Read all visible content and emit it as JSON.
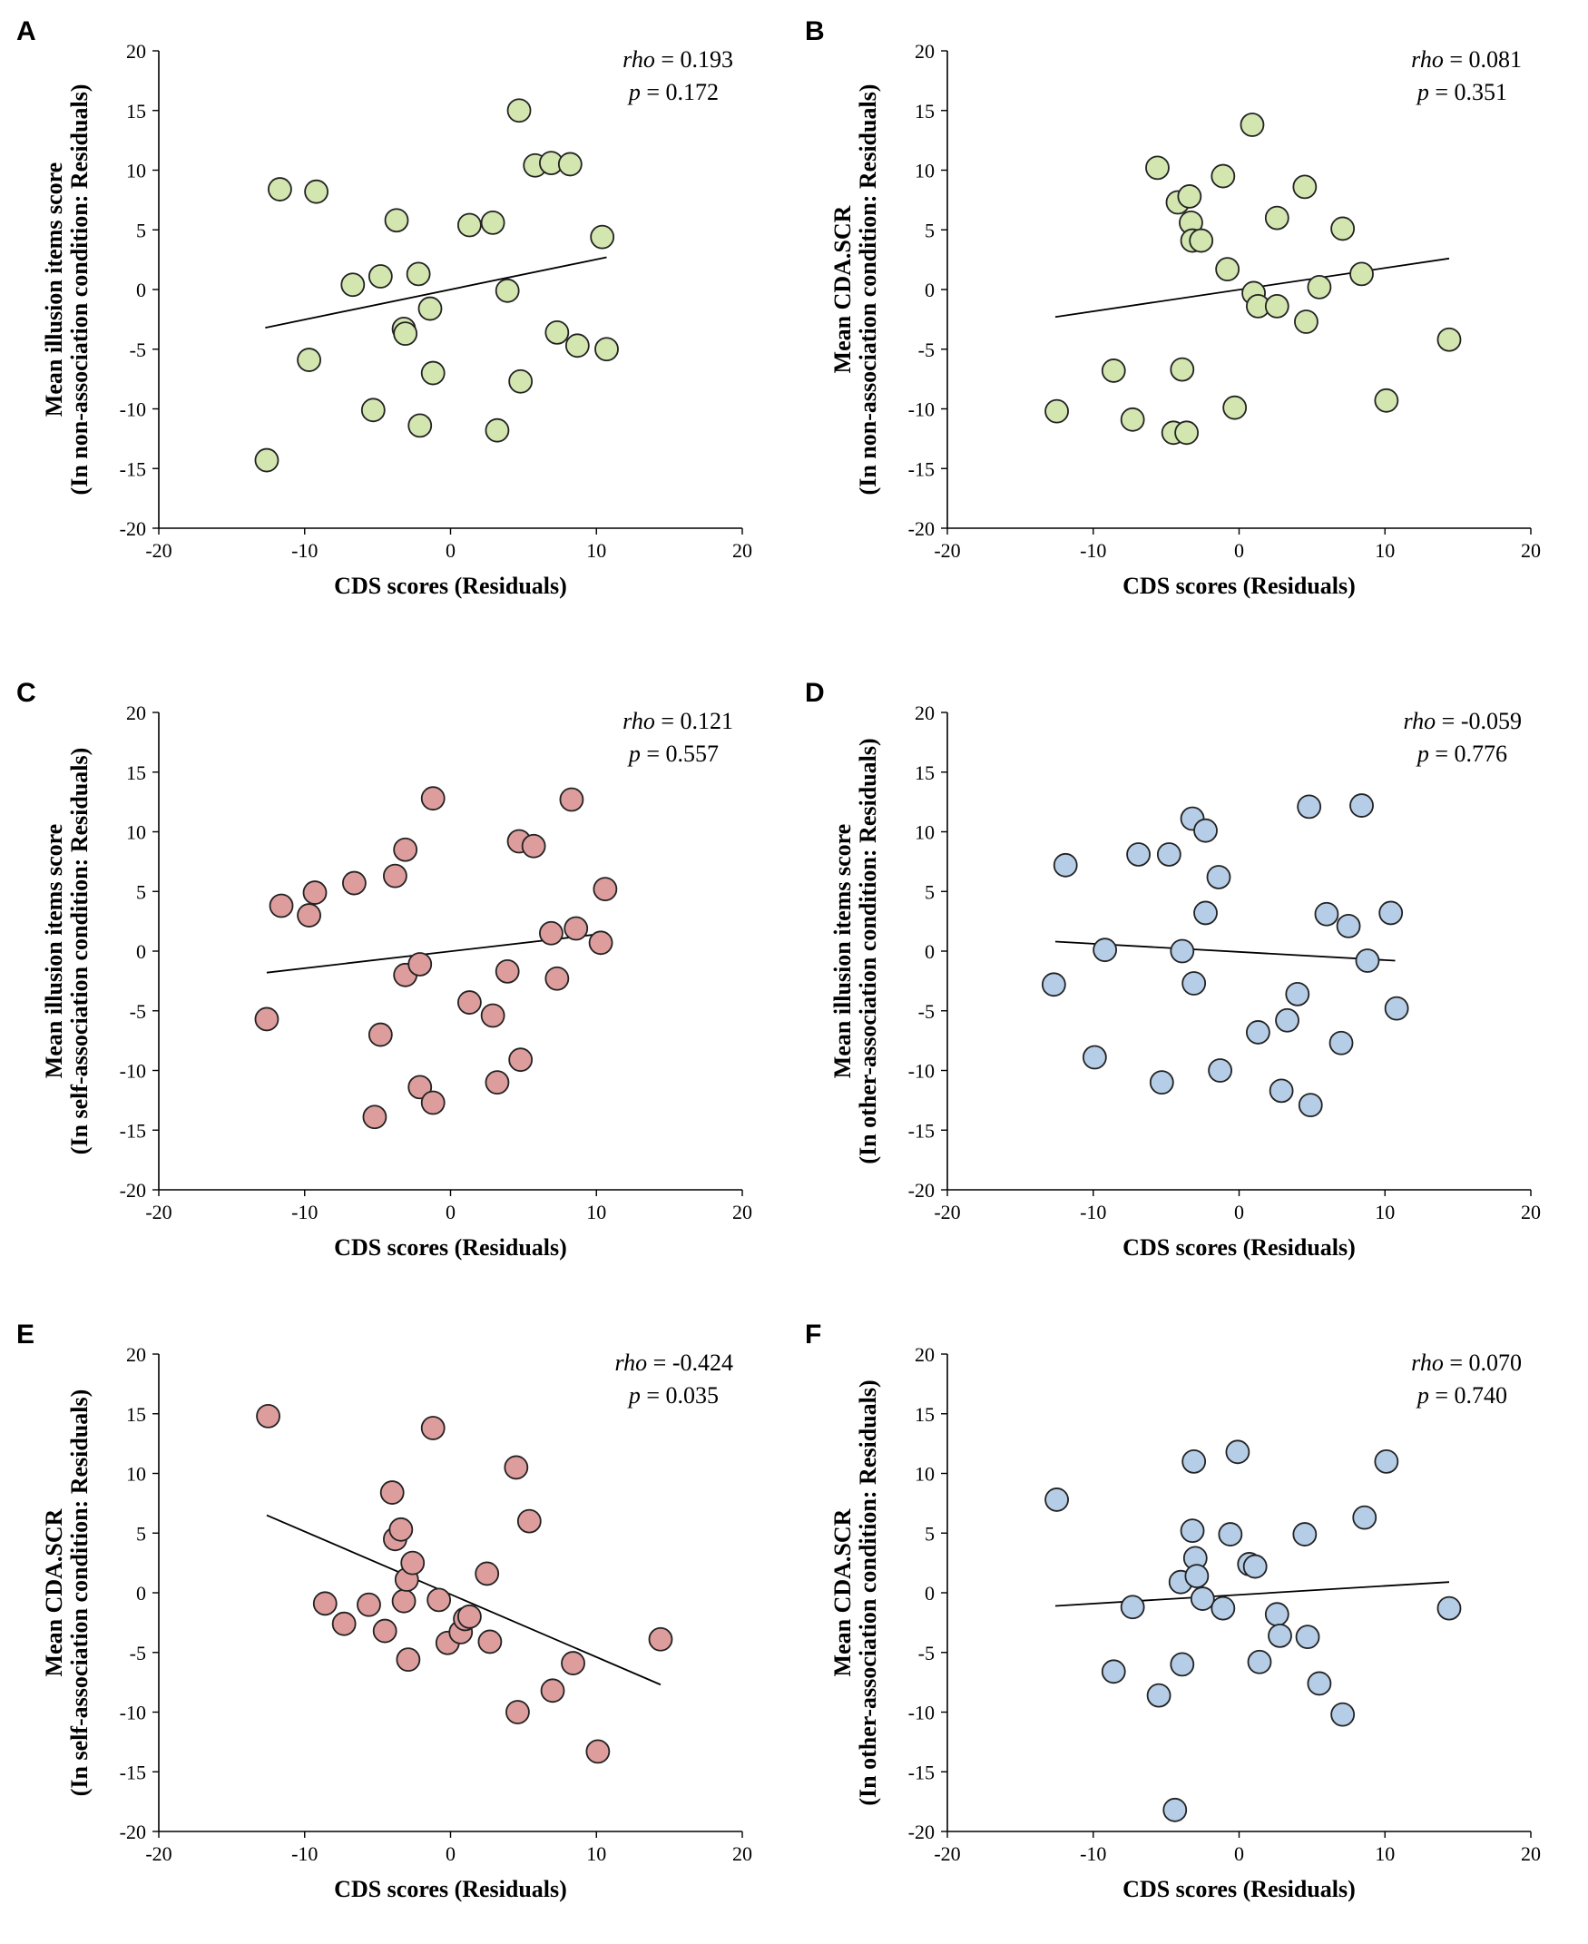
{
  "chart_data": [
    {
      "id": "A",
      "type": "scatter",
      "panel_letter": "A",
      "xlabel": "CDS scores (Residuals)",
      "ylabel_line1": "Mean illusion items score",
      "ylabel_line2": "(In non-association condition: Residuals)",
      "xlim": [
        -20,
        20
      ],
      "ylim": [
        -20,
        20
      ],
      "x_ticks": [
        "-20",
        "-10",
        "0",
        "10",
        "20"
      ],
      "y_ticks": [
        "-20",
        "-15",
        "-10",
        "-5",
        "0",
        "5",
        "10",
        "15",
        "20"
      ],
      "stat_key1": "rho",
      "stat_eq1": " = 0.193",
      "stat_key2": "p",
      "stat_eq2": " = 0.172",
      "marker_color": "#d3e6b0",
      "trend": [
        [
          -12.7,
          -3.2
        ],
        [
          10.7,
          2.7
        ]
      ],
      "x": [
        -12.6,
        -11.7,
        -9.2,
        -9.7,
        -6.7,
        -4.8,
        -5.3,
        -3.7,
        -3.2,
        -3.1,
        -2.2,
        -2.1,
        -1.4,
        -1.2,
        1.3,
        2.9,
        3.2,
        3.9,
        4.7,
        4.8,
        5.8,
        6.9,
        7.3,
        8.2,
        8.7,
        10.4,
        10.7
      ],
      "y": [
        -14.3,
        8.4,
        8.2,
        -5.9,
        0.4,
        1.1,
        -10.1,
        5.8,
        -3.3,
        -3.7,
        1.3,
        -11.4,
        -1.6,
        -7.0,
        5.4,
        5.6,
        -11.8,
        -0.1,
        15.0,
        -7.7,
        10.4,
        10.6,
        -3.6,
        10.5,
        -4.7,
        4.4,
        -5.0
      ]
    },
    {
      "id": "B",
      "type": "scatter",
      "panel_letter": "B",
      "xlabel": "CDS scores (Residuals)",
      "ylabel_line1": "Mean CDA.SCR",
      "ylabel_line2": "(In non-association condition: Residuals)",
      "xlim": [
        -20,
        20
      ],
      "ylim": [
        -20,
        20
      ],
      "x_ticks": [
        "-20",
        "-10",
        "0",
        "10",
        "20"
      ],
      "y_ticks": [
        "-20",
        "-15",
        "-10",
        "-5",
        "0",
        "5",
        "10",
        "15",
        "20"
      ],
      "stat_key1": "rho",
      "stat_eq1": " = 0.081",
      "stat_key2": "p",
      "stat_eq2": " = 0.351",
      "marker_color": "#d3e6b0",
      "trend": [
        [
          -12.6,
          -2.3
        ],
        [
          14.4,
          2.6
        ]
      ],
      "x": [
        -12.5,
        -8.6,
        -7.3,
        -5.6,
        -4.5,
        -4.2,
        -3.9,
        -3.6,
        -3.4,
        -3.3,
        -3.2,
        -2.6,
        -1.1,
        -0.8,
        -0.3,
        0.9,
        1.0,
        1.3,
        2.6,
        2.6,
        4.5,
        4.6,
        5.5,
        7.1,
        8.4,
        10.1,
        14.4
      ],
      "y": [
        -10.2,
        -6.8,
        -10.9,
        10.2,
        -12.0,
        7.3,
        -6.7,
        -12.0,
        7.8,
        5.6,
        4.1,
        4.1,
        9.5,
        1.7,
        -9.9,
        13.8,
        -0.3,
        -1.4,
        6.0,
        -1.4,
        8.6,
        -2.7,
        0.2,
        5.1,
        1.3,
        -9.3,
        -4.2
      ]
    },
    {
      "id": "C",
      "type": "scatter",
      "panel_letter": "C",
      "xlabel": "CDS scores (Residuals)",
      "ylabel_line1": "Mean illusion items score",
      "ylabel_line2": "(In self-association condition: Residuals)",
      "xlim": [
        -20,
        20
      ],
      "ylim": [
        -20,
        20
      ],
      "x_ticks": [
        "-20",
        "-10",
        "0",
        "10",
        "20"
      ],
      "y_ticks": [
        "-20",
        "-15",
        "-10",
        "-5",
        "0",
        "5",
        "10",
        "15",
        "20"
      ],
      "stat_key1": "rho",
      "stat_eq1": " = 0.121",
      "stat_key2": "p",
      "stat_eq2": " = 0.557",
      "marker_color": "#de9d9d",
      "trend": [
        [
          -12.6,
          -1.8
        ],
        [
          10.7,
          1.5
        ]
      ],
      "x": [
        -12.6,
        -11.6,
        -9.3,
        -9.7,
        -6.6,
        -5.2,
        -4.8,
        -3.8,
        -3.1,
        -3.1,
        -2.1,
        -2.1,
        -1.2,
        -1.2,
        1.3,
        2.9,
        3.2,
        3.9,
        4.7,
        4.8,
        5.7,
        6.9,
        7.3,
        8.3,
        8.6,
        10.3,
        10.6
      ],
      "y": [
        -5.7,
        3.8,
        4.9,
        3.0,
        5.7,
        -13.9,
        -7.0,
        6.3,
        8.5,
        -2.0,
        -1.1,
        -11.4,
        12.8,
        -12.7,
        -4.3,
        -5.4,
        -11.0,
        -1.7,
        9.2,
        -9.1,
        8.8,
        1.5,
        -2.3,
        12.7,
        1.9,
        0.7,
        5.2
      ]
    },
    {
      "id": "D",
      "type": "scatter",
      "panel_letter": "D",
      "xlabel": "CDS scores (Residuals)",
      "ylabel_line1": "Mean illusion  items score",
      "ylabel_line2": "(In other-association condition:  Residuals)",
      "xlim": [
        -20,
        20
      ],
      "ylim": [
        -20,
        20
      ],
      "x_ticks": [
        "-20",
        "-10",
        "0",
        "10",
        "20"
      ],
      "y_ticks": [
        "-20",
        "-15",
        "-10",
        "-5",
        "0",
        "5",
        "10",
        "15",
        "20"
      ],
      "stat_key1": "rho",
      "stat_eq1": " = -0.059",
      "stat_key2": "p",
      "stat_eq2": " = 0.776",
      "marker_color": "#b5cde6",
      "trend": [
        [
          -12.6,
          0.8
        ],
        [
          10.7,
          -0.8
        ]
      ],
      "x": [
        -12.7,
        -11.9,
        -9.2,
        -9.9,
        -6.9,
        -5.3,
        -4.8,
        -3.9,
        -3.2,
        -3.1,
        -2.3,
        -2.3,
        -1.3,
        -1.4,
        1.3,
        2.9,
        3.3,
        4.0,
        4.8,
        4.9,
        6.0,
        7.0,
        7.5,
        8.4,
        8.8,
        10.4,
        10.8
      ],
      "y": [
        -2.8,
        7.2,
        0.1,
        -8.9,
        8.1,
        -11.0,
        8.1,
        0.0,
        11.1,
        -2.7,
        3.2,
        10.1,
        -10.0,
        6.2,
        -6.8,
        -11.7,
        -5.8,
        -3.6,
        12.1,
        -12.9,
        3.1,
        -7.7,
        2.1,
        12.2,
        -0.8,
        3.2,
        -4.8
      ]
    },
    {
      "id": "E",
      "type": "scatter",
      "panel_letter": "E",
      "xlabel": "CDS scores (Residuals)",
      "ylabel_line1": "Mean CDA.SCR",
      "ylabel_line2": "(In self-association condition: Residuals)",
      "xlim": [
        -20,
        20
      ],
      "ylim": [
        -20,
        20
      ],
      "x_ticks": [
        "-20",
        "-10",
        "0",
        "10",
        "20"
      ],
      "y_ticks": [
        "-20",
        "-15",
        "-10",
        "-5",
        "0",
        "5",
        "10",
        "15",
        "20"
      ],
      "stat_key1": "rho",
      "stat_eq1": " = -0.424",
      "stat_key2": "p",
      "stat_eq2": " = 0.035",
      "marker_color": "#de9d9d",
      "trend": [
        [
          -12.6,
          6.5
        ],
        [
          14.4,
          -7.7
        ]
      ],
      "x": [
        -12.5,
        -8.6,
        -7.3,
        -5.6,
        -4.5,
        -4.0,
        -3.8,
        -3.4,
        -3.2,
        -3.0,
        -2.9,
        -2.6,
        -1.2,
        -0.8,
        -0.2,
        0.7,
        1.0,
        1.3,
        2.5,
        2.7,
        4.5,
        4.6,
        5.4,
        7.0,
        8.4,
        10.1,
        14.4
      ],
      "y": [
        14.8,
        -0.9,
        -2.6,
        -1.0,
        -3.2,
        8.4,
        4.5,
        5.3,
        -0.7,
        1.1,
        -5.6,
        2.5,
        13.8,
        -0.6,
        -4.2,
        -3.3,
        -2.2,
        -2.0,
        1.6,
        -4.1,
        10.5,
        -10.0,
        6.0,
        -8.2,
        -5.9,
        -13.3,
        -3.9
      ]
    },
    {
      "id": "F",
      "type": "scatter",
      "panel_letter": "F",
      "xlabel": "CDS scores (Residuals)",
      "ylabel_line1": "Mean CDA.SCR",
      "ylabel_line2": "(In other-association condition:  Residuals)",
      "xlim": [
        -20,
        20
      ],
      "ylim": [
        -20,
        20
      ],
      "x_ticks": [
        "-20",
        "-10",
        "0",
        "10",
        "20"
      ],
      "y_ticks": [
        "-20",
        "-15",
        "-10",
        "-5",
        "0",
        "5",
        "10",
        "15",
        "20"
      ],
      "stat_key1": "rho",
      "stat_eq1": " = 0.070",
      "stat_key2": "p",
      "stat_eq2": " = 0.740",
      "marker_color": "#b5cde6",
      "trend": [
        [
          -12.6,
          -1.1
        ],
        [
          14.4,
          0.9
        ]
      ],
      "x": [
        -12.5,
        -8.6,
        -7.3,
        -5.5,
        -4.4,
        -4.0,
        -3.9,
        -3.2,
        -3.1,
        -3.0,
        -2.9,
        -2.5,
        -1.1,
        -0.6,
        -0.1,
        0.7,
        1.1,
        1.4,
        2.6,
        2.8,
        4.5,
        4.7,
        5.5,
        7.1,
        8.6,
        10.1,
        14.4
      ],
      "y": [
        7.8,
        -6.6,
        -1.2,
        -8.6,
        -18.2,
        0.9,
        -6.0,
        5.2,
        11.0,
        2.9,
        1.4,
        -0.5,
        -1.3,
        4.9,
        11.8,
        2.4,
        2.2,
        -5.8,
        -1.8,
        -3.6,
        4.9,
        -3.7,
        -7.6,
        -10.2,
        6.3,
        11.0,
        -1.3
      ]
    }
  ]
}
